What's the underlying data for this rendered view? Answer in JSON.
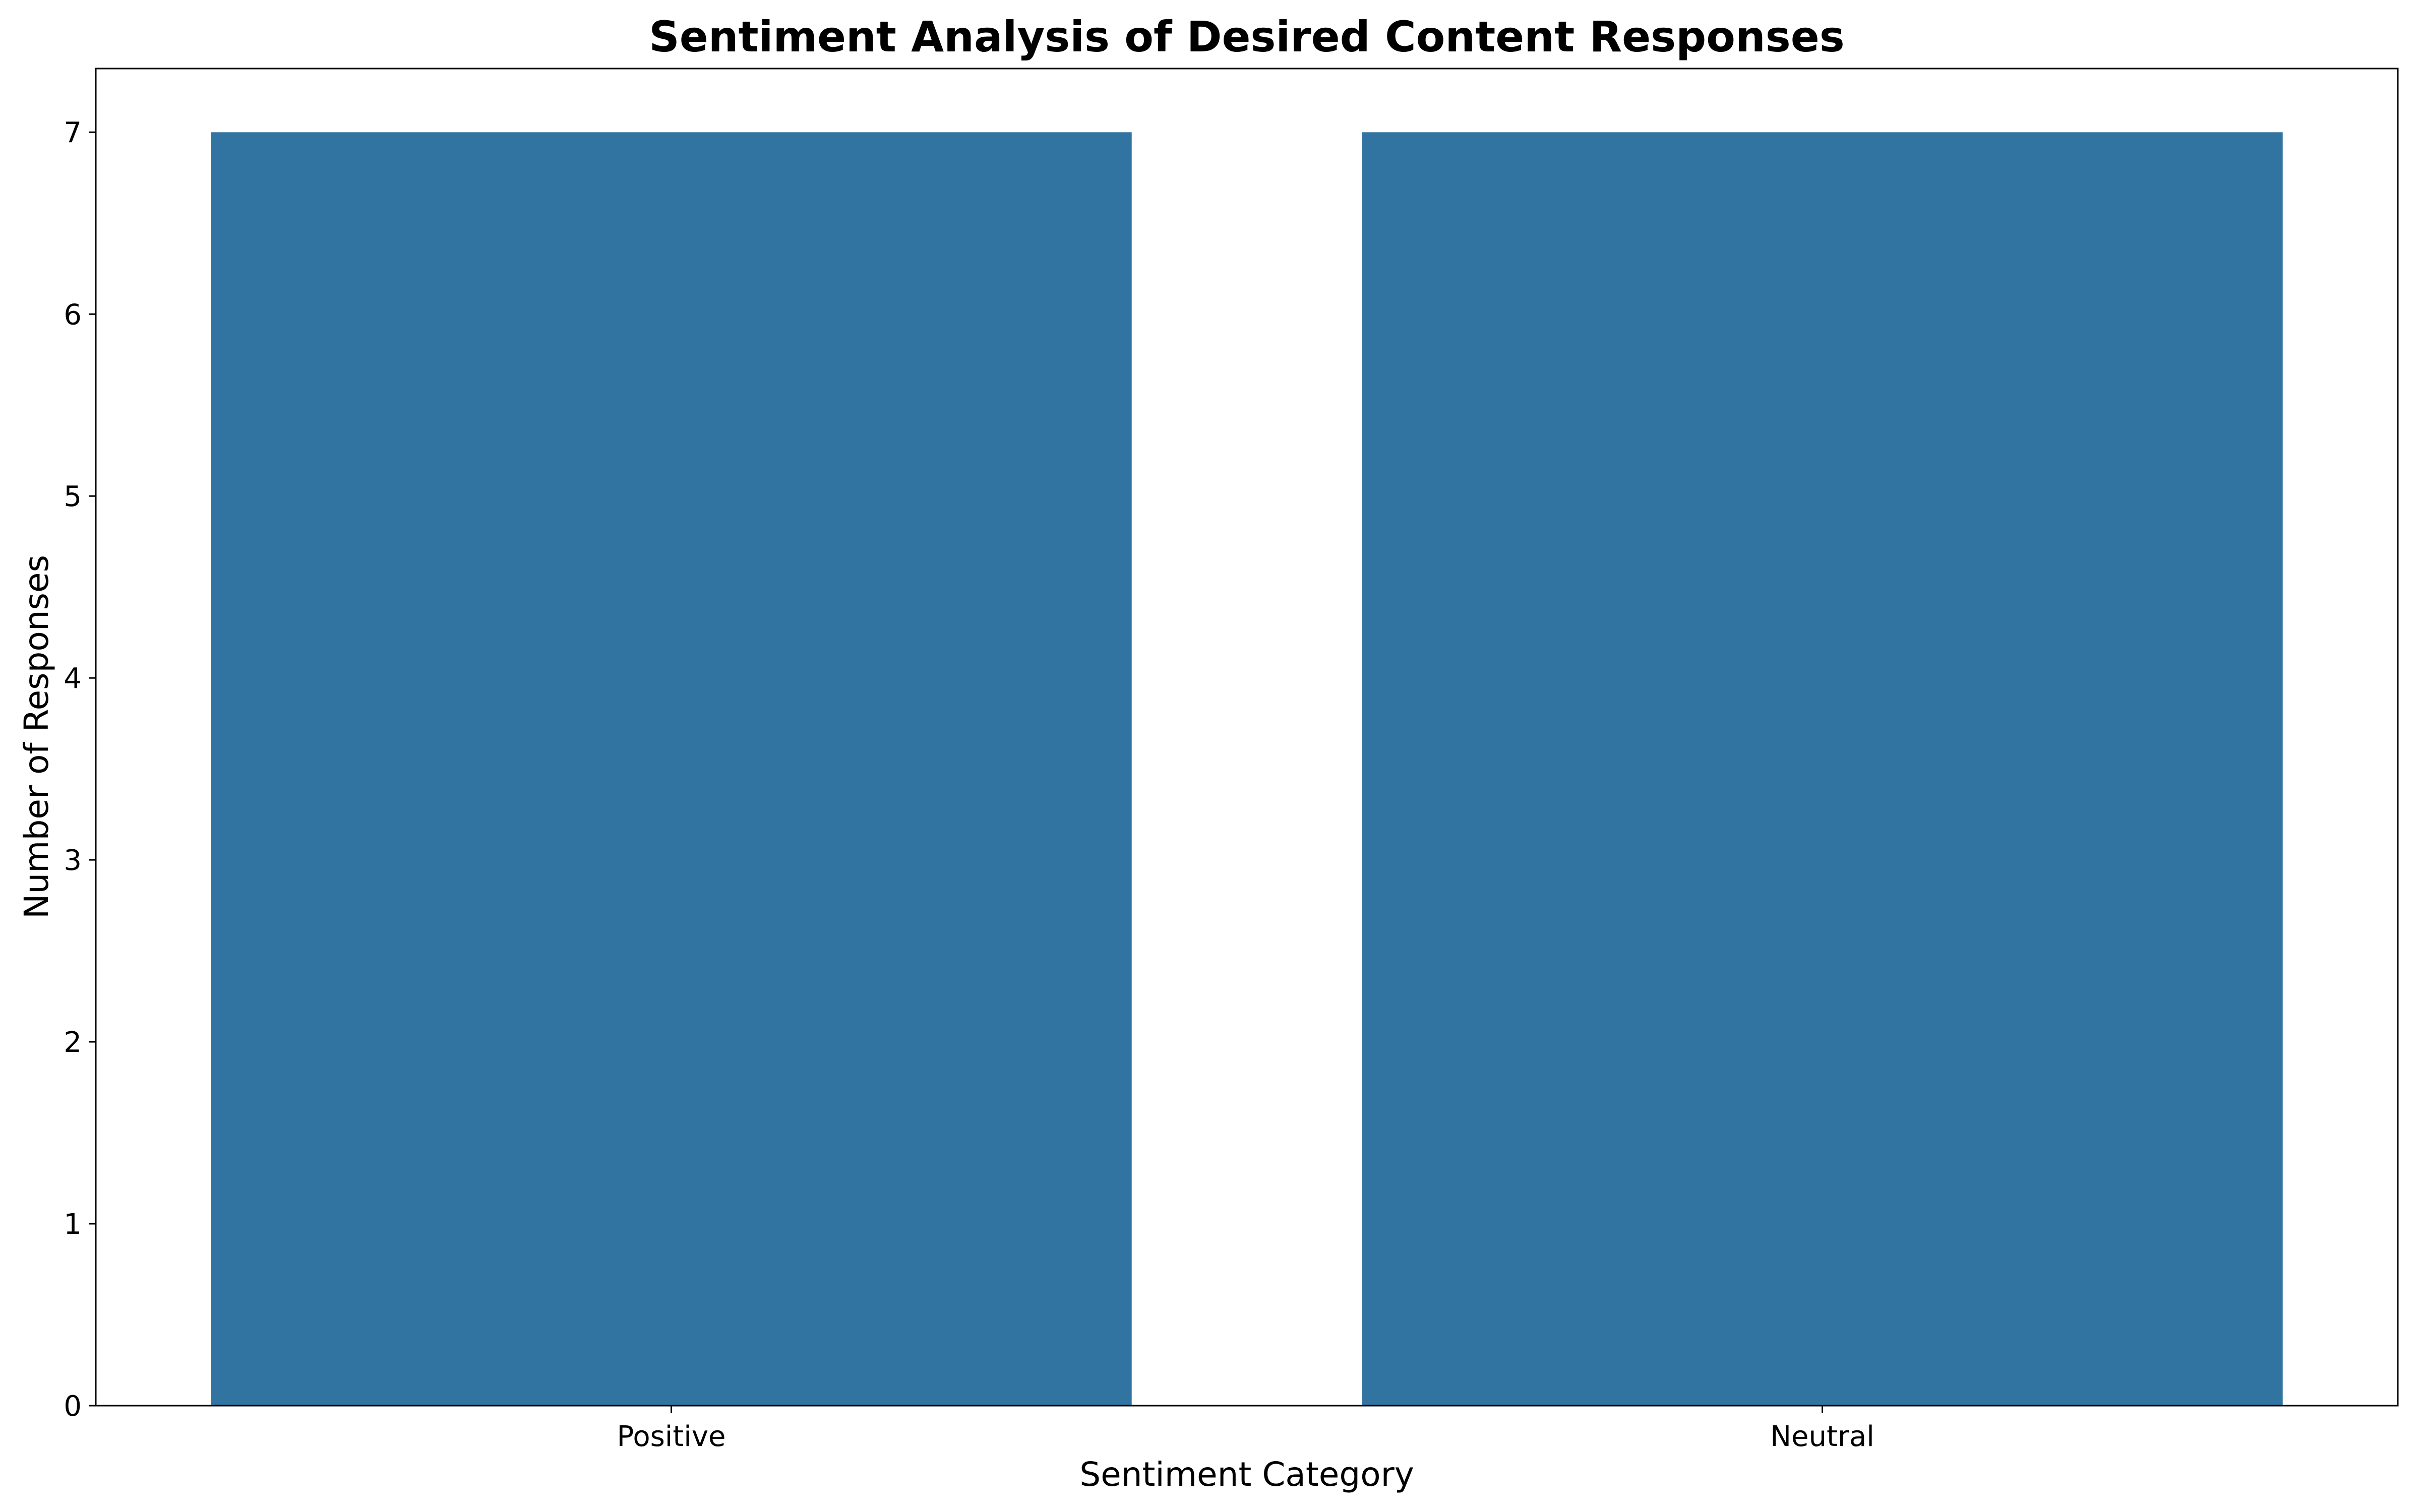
{
  "chart_data": {
    "type": "bar",
    "title": "Sentiment Analysis of Desired Content Responses",
    "xlabel": "Sentiment Category",
    "ylabel": "Number of Responses",
    "categories": [
      "Positive",
      "Neutral"
    ],
    "values": [
      7,
      7
    ],
    "ylim": [
      0,
      7.35
    ],
    "yticks": [
      0,
      1,
      2,
      3,
      4,
      5,
      6,
      7
    ],
    "grid": false,
    "legend": "none",
    "colors": {
      "bar": "#3274a1",
      "axis": "#000000",
      "background": "#ffffff"
    }
  }
}
